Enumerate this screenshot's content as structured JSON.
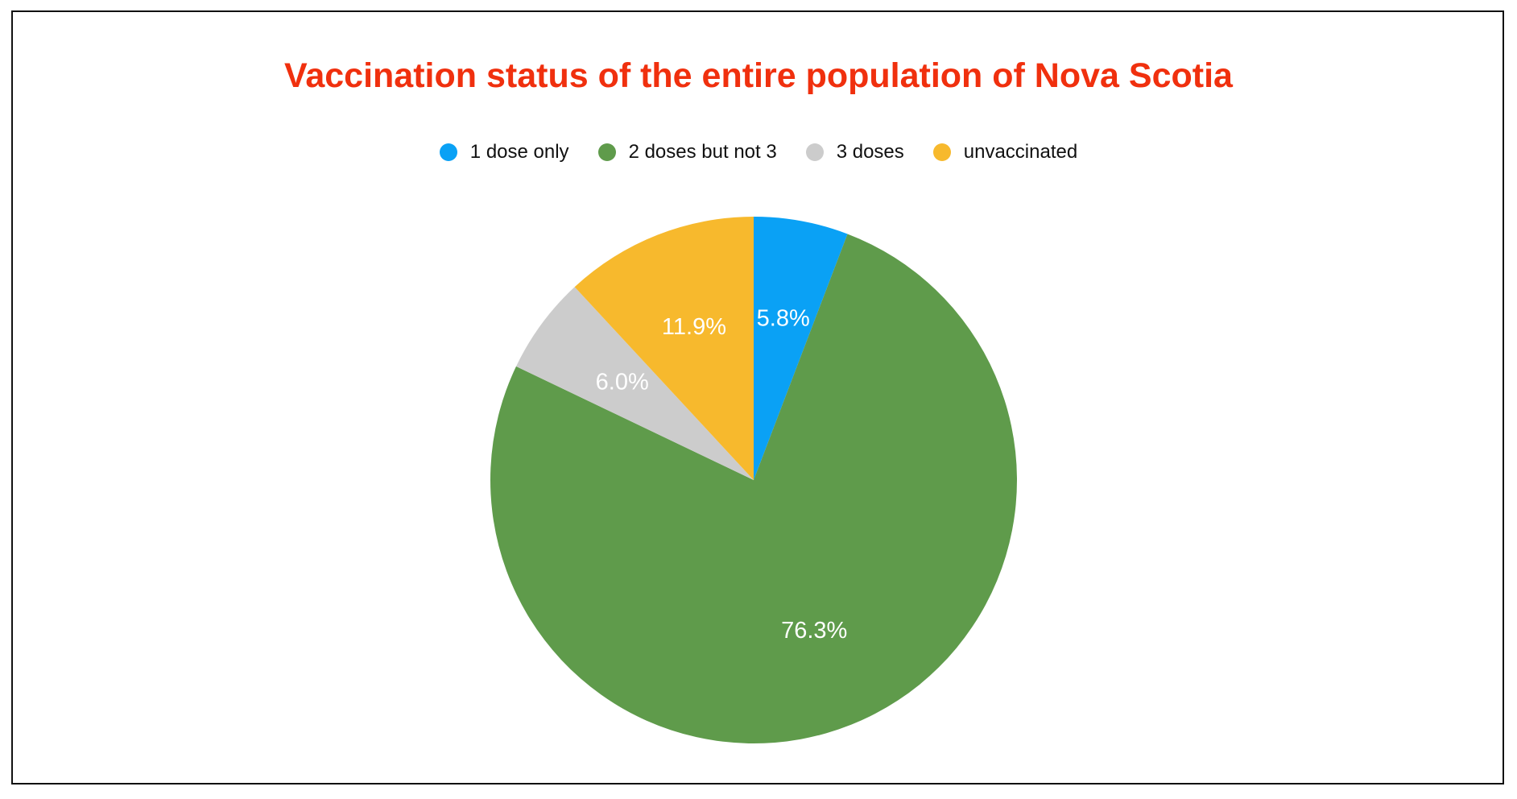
{
  "chart_data": {
    "type": "pie",
    "title": "Vaccination status of the entire population of Nova Scotia",
    "legend_position": "top",
    "categories": [
      "1 dose only",
      "2 doses but not 3",
      "3 doses",
      "unvaccinated"
    ],
    "values": [
      5.8,
      76.3,
      6.0,
      11.9
    ],
    "value_labels": [
      "5.8%",
      "76.3%",
      "6.0%",
      "11.9%"
    ],
    "colors": [
      "#0aa1f5",
      "#5f9b4b",
      "#cccccc",
      "#f7b92d"
    ],
    "title_color": "#f0300e",
    "start_angle_deg": 0,
    "direction": "clockwise"
  },
  "legend": {
    "items": [
      {
        "label": "1 dose only",
        "color": "#0aa1f5"
      },
      {
        "label": "2 doses but not 3",
        "color": "#5f9b4b"
      },
      {
        "label": "3 doses",
        "color": "#cccccc"
      },
      {
        "label": "unvaccinated",
        "color": "#f7b92d"
      }
    ]
  }
}
